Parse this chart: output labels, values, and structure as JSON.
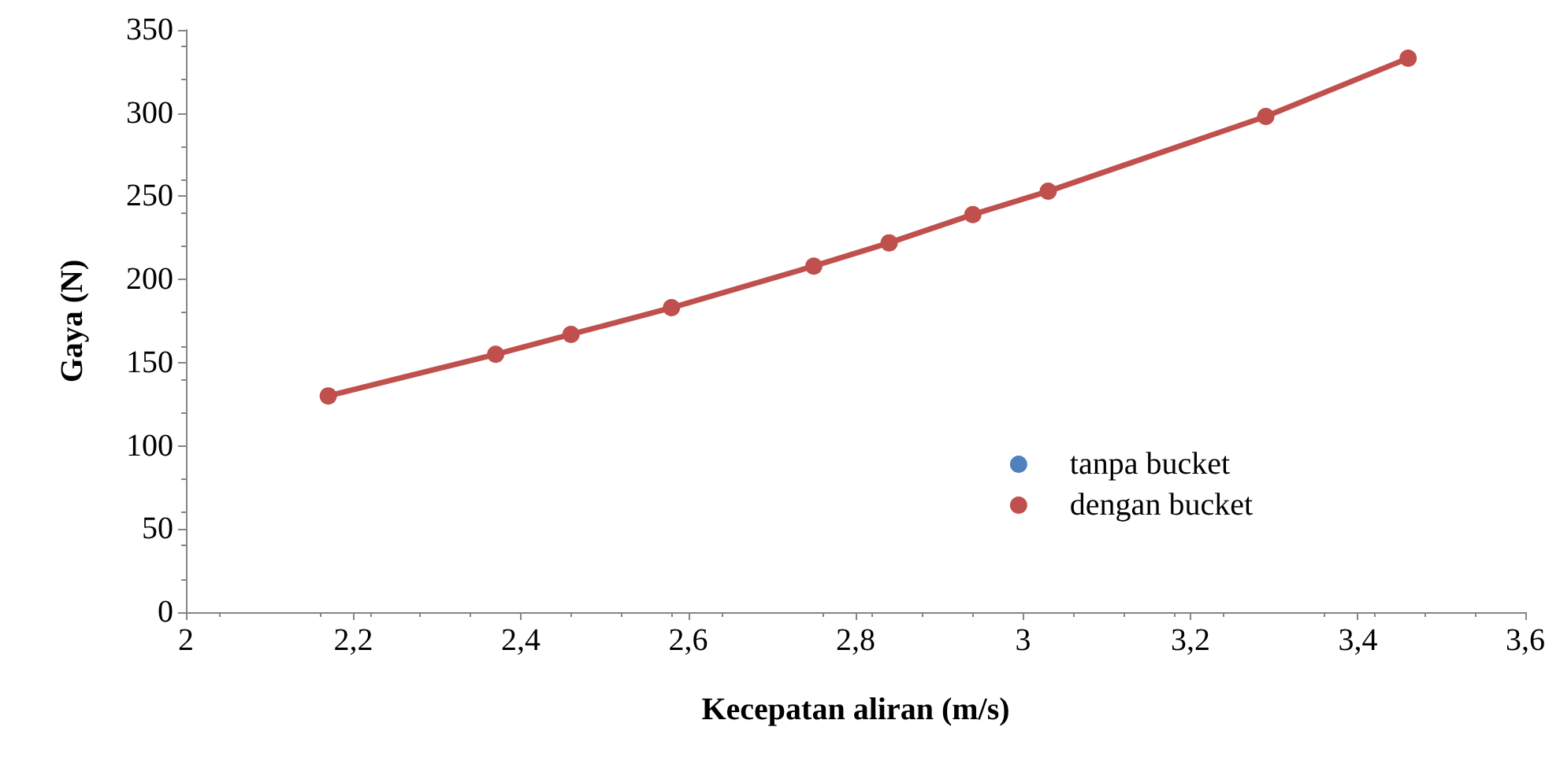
{
  "chart_data": {
    "type": "line",
    "xlabel": "Kecepatan aliran (m/s)",
    "ylabel": "Gaya (N)",
    "x": [
      2.17,
      2.37,
      2.46,
      2.58,
      2.75,
      2.84,
      2.94,
      3.03,
      3.29,
      3.46
    ],
    "series": [
      {
        "name": "tanpa bucket",
        "color": "#4f81bd",
        "values": [
          null,
          null,
          null,
          null,
          null,
          null,
          null,
          null,
          null,
          null
        ]
      },
      {
        "name": "dengan bucket",
        "color": "#c0504d",
        "values": [
          130,
          155,
          167,
          183,
          208,
          222,
          239,
          253,
          298,
          333
        ]
      }
    ],
    "xlim": [
      2,
      3.6
    ],
    "xticks": [
      {
        "value": 2,
        "label": "2"
      },
      {
        "value": 2.2,
        "label": "2,2"
      },
      {
        "value": 2.4,
        "label": "2,4"
      },
      {
        "value": 2.6,
        "label": "2,6"
      },
      {
        "value": 2.8,
        "label": "2,8"
      },
      {
        "value": 3,
        "label": "3"
      },
      {
        "value": 3.2,
        "label": "3,2"
      },
      {
        "value": 3.4,
        "label": "3,4"
      },
      {
        "value": 3.6,
        "label": "3,6"
      }
    ],
    "ylim": [
      0,
      350
    ],
    "yticks": [
      0,
      50,
      100,
      150,
      200,
      250,
      300,
      350
    ],
    "grid": false,
    "legend": "bottom right",
    "marker": "circle",
    "line_style": "solid"
  }
}
